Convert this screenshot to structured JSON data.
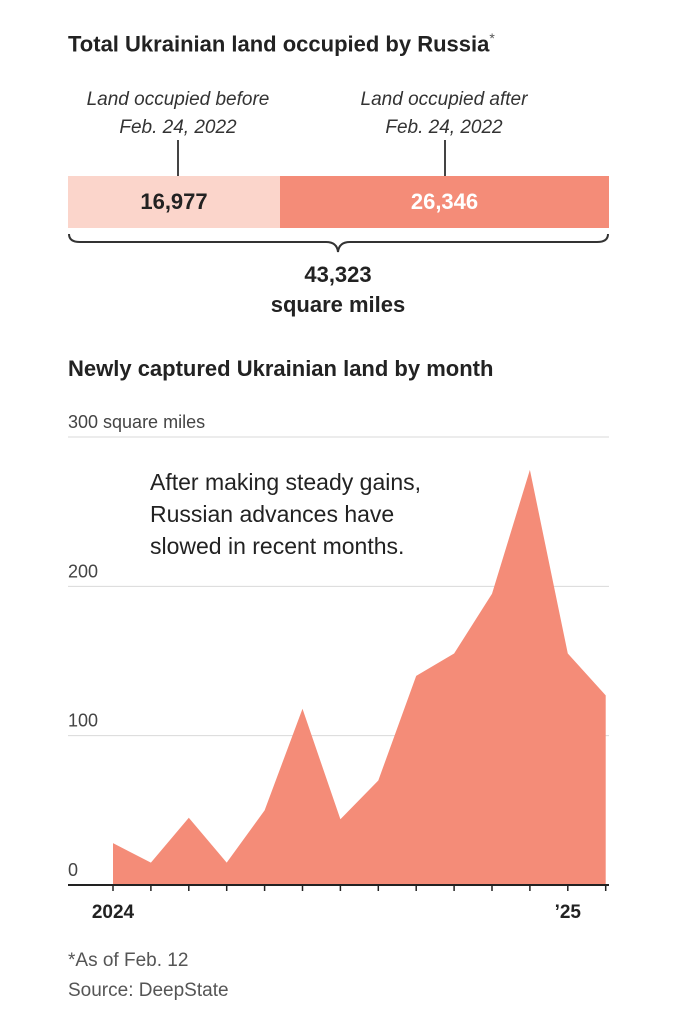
{
  "top": {
    "title": "Total Ukrainian land occupied by Russia",
    "title_mark": "*",
    "before_label_line1": "Land occupied before",
    "before_label_line2": "Feb. 24, 2022",
    "after_label_line1": "Land occupied after",
    "after_label_line2": "Feb. 24, 2022",
    "total_value": "43,323",
    "total_unit": "square miles"
  },
  "bottom": {
    "title": "Newly captured Ukrainian land by month",
    "annotation_line1": "After making steady gains,",
    "annotation_line2": "Russian advances have",
    "annotation_line3": "slowed in recent months."
  },
  "footer": {
    "footnote": "*As of Feb. 12",
    "source": "Source: DeepState"
  },
  "colors": {
    "before_fill": "#fbd5cb",
    "after_fill": "#f48c78",
    "area_fill": "#f48c78",
    "grid": "#d9d9d9"
  },
  "chart_data": [
    {
      "type": "bar",
      "orientation": "horizontal-stacked",
      "title": "Total Ukrainian land occupied by Russia*",
      "categories": [
        "Land occupied before Feb. 24, 2022",
        "Land occupied after Feb. 24, 2022"
      ],
      "values": [
        16977,
        26346
      ],
      "value_labels": [
        "16,977",
        "26,346"
      ],
      "total": 43323
    },
    {
      "type": "area",
      "title": "Newly captured Ukrainian land by month",
      "x": [
        "2024-01",
        "2024-02",
        "2024-03",
        "2024-04",
        "2024-05",
        "2024-06",
        "2024-07",
        "2024-08",
        "2024-09",
        "2024-10",
        "2024-11",
        "2024-12",
        "2025-01",
        "2025-02"
      ],
      "values": [
        28,
        15,
        45,
        15,
        50,
        118,
        44,
        70,
        140,
        155,
        195,
        278,
        155,
        127
      ],
      "ylim": [
        0,
        300
      ],
      "yticks": [
        0,
        100,
        200,
        300
      ],
      "ytick_labels": [
        "0",
        "100",
        "200",
        "300 square miles"
      ],
      "xtick_labels": [
        {
          "x": "2024-01",
          "label": "2024"
        },
        {
          "x": "2025-01",
          "label": "’25"
        }
      ],
      "grid": true
    }
  ]
}
